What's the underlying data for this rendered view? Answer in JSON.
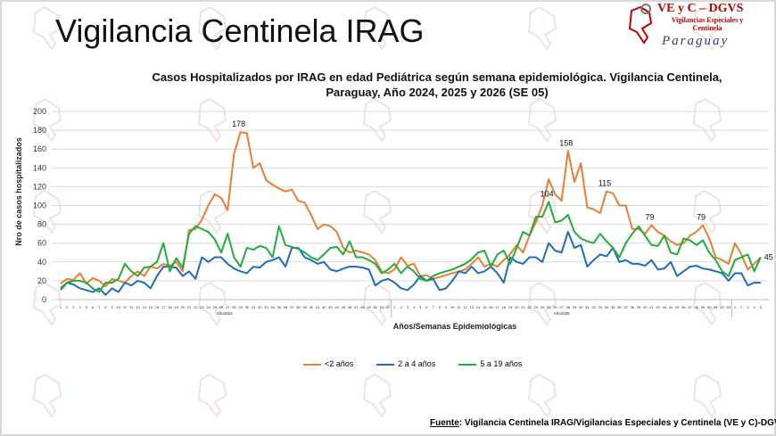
{
  "header": {
    "title": "Vigilancia Centinela IRAG"
  },
  "logo": {
    "line1": "VE y C – DGVS",
    "line2": "Vigilancias Especiales y Centinela",
    "line3": "Paraguay"
  },
  "footer": {
    "label": "Fuente",
    "text": ": Vigilancia  Centinela IRAG/Vigilancias Especiales y Centinela (VE y C)-DGVS"
  },
  "chart_data": {
    "type": "line",
    "title": "Casos Hospitalizados por IRAG en edad Pediátrica según semana epidemiológica. Vigilancia Centinela, Paraguay, Año 2024, 2025 y 2026 (SE 05)",
    "xlabel": "Años/Semanas Epidemiológicas",
    "ylabel": "Nro de casos hospitalizados",
    "ylim": [
      0,
      200
    ],
    "yticks": [
      0,
      20,
      40,
      60,
      80,
      100,
      120,
      140,
      160,
      180,
      200
    ],
    "grid": true,
    "legend_position": "bottom",
    "year_groups": [
      {
        "label": "Año2024",
        "weeks": 52
      },
      {
        "label": "Año2025",
        "weeks": 53
      },
      {
        "label": "",
        "weeks": 5
      }
    ],
    "series": [
      {
        "name": "<2 años",
        "color": "#ed7d31",
        "values": [
          17,
          22,
          21,
          28,
          17,
          23,
          20,
          14,
          22,
          20,
          18,
          25,
          30,
          25,
          35,
          33,
          38,
          36,
          40,
          30,
          74,
          75,
          85,
          100,
          112,
          108,
          95,
          155,
          178,
          177,
          140,
          145,
          127,
          122,
          118,
          115,
          117,
          105,
          103,
          90,
          75,
          80,
          78,
          72,
          55,
          50,
          52,
          50,
          48,
          42,
          30,
          28,
          32,
          45,
          36,
          38,
          25,
          26,
          22,
          24,
          26,
          28,
          30,
          32,
          38,
          45,
          35,
          38,
          35,
          42,
          48,
          58,
          50,
          68,
          82,
          100,
          128,
          112,
          105,
          158,
          125,
          145,
          98,
          96,
          92,
          115,
          113,
          100,
          100,
          75,
          75,
          70,
          79,
          72,
          68,
          62,
          58,
          60,
          68,
          72,
          79,
          65,
          45,
          42,
          38,
          60,
          48,
          32,
          38,
          45
        ]
      },
      {
        "name": "2 a 4 años",
        "color": "#1f6bc1",
        "values": [
          12,
          18,
          16,
          12,
          10,
          8,
          12,
          5,
          12,
          8,
          18,
          15,
          20,
          18,
          12,
          25,
          35,
          35,
          34,
          25,
          30,
          22,
          45,
          40,
          45,
          45,
          38,
          33,
          30,
          28,
          35,
          34,
          40,
          42,
          45,
          35,
          55,
          55,
          45,
          42,
          38,
          40,
          32,
          30,
          33,
          35,
          35,
          34,
          32,
          15,
          20,
          22,
          18,
          12,
          10,
          16,
          25,
          20,
          22,
          10,
          12,
          20,
          30,
          28,
          35,
          28,
          30,
          35,
          28,
          18,
          45,
          40,
          38,
          45,
          45,
          40,
          60,
          52,
          50,
          72,
          55,
          58,
          35,
          42,
          48,
          46,
          55,
          40,
          42,
          38,
          38,
          36,
          42,
          32,
          33,
          40,
          25,
          30,
          35,
          36,
          33,
          32,
          30,
          28,
          20,
          28,
          28,
          15,
          18,
          18
        ]
      },
      {
        "name": "5 a 19 años",
        "color": "#1fae3a",
        "values": [
          10,
          18,
          20,
          20,
          18,
          12,
          8,
          18,
          18,
          22,
          38,
          30,
          25,
          34,
          35,
          40,
          60,
          30,
          44,
          34,
          70,
          78,
          75,
          72,
          64,
          50,
          70,
          45,
          35,
          55,
          53,
          57,
          55,
          45,
          78,
          58,
          56,
          54,
          50,
          45,
          42,
          48,
          55,
          56,
          48,
          62,
          45,
          45,
          42,
          38,
          28,
          32,
          38,
          28,
          35,
          30,
          22,
          20,
          25,
          28,
          30,
          32,
          35,
          38,
          43,
          50,
          52,
          35,
          48,
          52,
          38,
          55,
          72,
          68,
          88,
          88,
          104,
          82,
          84,
          90,
          72,
          65,
          62,
          60,
          70,
          62,
          55,
          45,
          60,
          70,
          78,
          68,
          58,
          57,
          68,
          50,
          48,
          65,
          63,
          58,
          63,
          50,
          42,
          30,
          25,
          42,
          45,
          48,
          30,
          45
        ]
      }
    ],
    "data_labels": [
      {
        "series": 0,
        "week_index": 28,
        "text": "178"
      },
      {
        "series": 0,
        "week_index": 79,
        "text": "158"
      },
      {
        "series": 2,
        "week_index": 76,
        "text": "104"
      },
      {
        "series": 0,
        "week_index": 85,
        "text": "115"
      },
      {
        "series": 0,
        "week_index": 92,
        "text": "79"
      },
      {
        "series": 0,
        "week_index": 100,
        "text": "79"
      },
      {
        "series": 2,
        "week_index": 109,
        "text": "45"
      }
    ]
  }
}
